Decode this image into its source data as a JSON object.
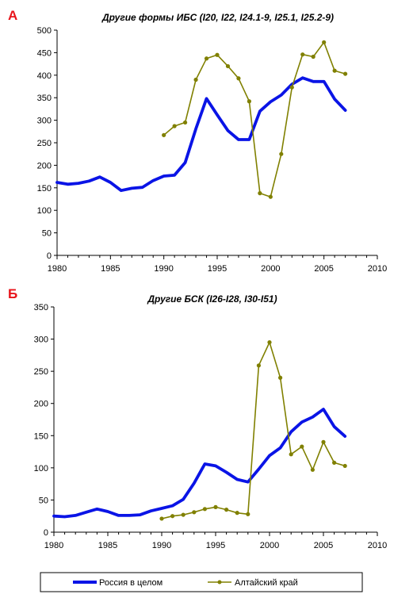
{
  "colors": {
    "russia": "#0a14e6",
    "altai": "#808000",
    "panel_label": "#e8141b"
  },
  "legend": {
    "russia": "Россия в целом",
    "altai": "Алтайский край"
  },
  "chart_data": [
    {
      "panel": "А",
      "type": "line",
      "title": "Другие формы ИБС  (I20, I22, I24.1-9, I25.1, I25.2-9)",
      "xlabel": "",
      "ylabel": "",
      "xlim": [
        1980,
        2010
      ],
      "ylim": [
        0,
        500
      ],
      "xticks": [
        1980,
        1985,
        1990,
        1995,
        2000,
        2005,
        2010
      ],
      "yticks": [
        0,
        50,
        100,
        150,
        200,
        250,
        300,
        350,
        400,
        450,
        500
      ],
      "grid": false,
      "legend_position": "bottom",
      "series": [
        {
          "name": "Россия в целом",
          "marker": false,
          "x": [
            1980,
            1981,
            1982,
            1983,
            1984,
            1985,
            1986,
            1987,
            1988,
            1989,
            1990,
            1991,
            1992,
            1993,
            1994,
            1995,
            1996,
            1997,
            1998,
            1999,
            2000,
            2001,
            2002,
            2003,
            2004,
            2005,
            2006,
            2007
          ],
          "y": [
            162,
            158,
            160,
            165,
            174,
            162,
            144,
            149,
            151,
            166,
            176,
            178,
            206,
            281,
            348,
            312,
            277,
            257,
            257,
            320,
            341,
            356,
            380,
            394,
            386,
            386,
            347,
            322
          ]
        },
        {
          "name": "Алтайский край",
          "marker": true,
          "x": [
            1990,
            1991,
            1992,
            1993,
            1994,
            1995,
            1996,
            1997,
            1998,
            1999,
            2000,
            2001,
            2002,
            2003,
            2004,
            2005,
            2006,
            2007
          ],
          "y": [
            267,
            287,
            295,
            390,
            437,
            445,
            420,
            393,
            342,
            138,
            130,
            225,
            373,
            446,
            441,
            473,
            410,
            403
          ]
        }
      ]
    },
    {
      "panel": "Б",
      "type": "line",
      "title": "Другие БСК  (I26-I28, I30-I51)",
      "xlabel": "",
      "ylabel": "",
      "xlim": [
        1980,
        2010
      ],
      "ylim": [
        0,
        350
      ],
      "xticks": [
        1980,
        1985,
        1990,
        1995,
        2000,
        2005,
        2010
      ],
      "yticks": [
        0,
        50,
        100,
        150,
        200,
        250,
        300,
        350
      ],
      "grid": false,
      "legend_position": "bottom",
      "series": [
        {
          "name": "Россия в целом",
          "marker": false,
          "x": [
            1980,
            1981,
            1982,
            1983,
            1984,
            1985,
            1986,
            1987,
            1988,
            1989,
            1990,
            1991,
            1992,
            1993,
            1994,
            1995,
            1996,
            1997,
            1998,
            1999,
            2000,
            2001,
            2002,
            2003,
            2004,
            2005,
            2006,
            2007
          ],
          "y": [
            25,
            24,
            26,
            31,
            36,
            32,
            26,
            26,
            27,
            33,
            37,
            41,
            51,
            76,
            106,
            103,
            93,
            82,
            78,
            98,
            119,
            131,
            156,
            171,
            179,
            191,
            164,
            149
          ]
        },
        {
          "name": "Алтайский край",
          "marker": true,
          "x": [
            1990,
            1991,
            1992,
            1993,
            1994,
            1995,
            1996,
            1997,
            1998,
            1999,
            2000,
            2001,
            2002,
            2003,
            2004,
            2005,
            2006,
            2007
          ],
          "y": [
            21,
            25,
            27,
            31,
            36,
            39,
            35,
            30,
            28,
            259,
            295,
            240,
            121,
            133,
            97,
            140,
            108,
            103
          ]
        }
      ]
    }
  ]
}
